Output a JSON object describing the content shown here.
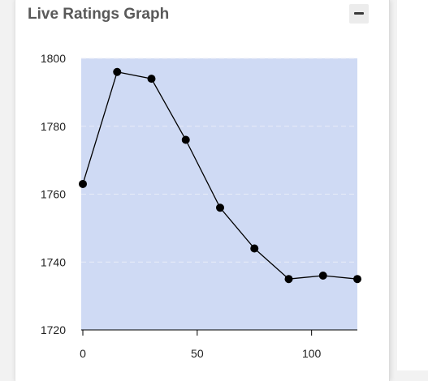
{
  "panel": {
    "title": "Live Ratings Graph",
    "collapse_icon": "minus-icon"
  },
  "colors": {
    "plot_background": "#cfdaf4",
    "line": "#000000",
    "marker": "#000000",
    "grid": "#e8ecf7"
  },
  "chart_data": {
    "type": "line",
    "title": "",
    "xlabel": "",
    "ylabel": "",
    "xlim": [
      0,
      120
    ],
    "ylim": [
      1720,
      1800
    ],
    "x_ticks": [
      0,
      50,
      100
    ],
    "y_ticks": [
      1720,
      1740,
      1760,
      1780,
      1800
    ],
    "grid": "horizontal dashed",
    "legend": "none",
    "series": [
      {
        "x": [
          0,
          15,
          30,
          45,
          60,
          75,
          90,
          105,
          120
        ],
        "values": [
          1763,
          1796,
          1794,
          1776,
          1756,
          1744,
          1735,
          1736,
          1735
        ]
      }
    ]
  }
}
